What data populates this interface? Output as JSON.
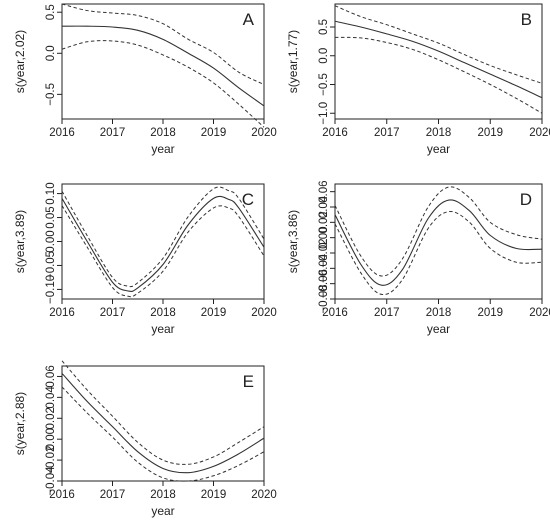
{
  "colors": {
    "line": "#333333",
    "frame": "#222222",
    "background": "#ffffff"
  },
  "chart_data": [
    {
      "type": "line",
      "panel_label": "A",
      "xlabel": "year",
      "ylabel": "s(year,2.02)",
      "xlim": [
        2016,
        2020
      ],
      "ylim": [
        -0.8,
        0.6
      ],
      "xticks": [
        2016,
        2017,
        2018,
        2019,
        2020
      ],
      "yticks": [
        -0.5,
        0.0,
        0.5
      ],
      "ytick_labels": [
        "−0.5",
        "0.0",
        "0.5"
      ],
      "grid": false,
      "x": [
        2016,
        2016.5,
        2017,
        2017.5,
        2018,
        2018.5,
        2019,
        2019.5,
        2020
      ],
      "series": [
        {
          "style": "solid",
          "values": [
            0.33,
            0.33,
            0.32,
            0.28,
            0.17,
            0.0,
            -0.18,
            -0.42,
            -0.64
          ]
        },
        {
          "style": "dashed",
          "values": [
            0.6,
            0.52,
            0.49,
            0.46,
            0.36,
            0.17,
            0.01,
            -0.23,
            -0.38
          ]
        },
        {
          "style": "dashed",
          "values": [
            0.05,
            0.14,
            0.15,
            0.1,
            -0.02,
            -0.17,
            -0.36,
            -0.62,
            -0.9
          ]
        }
      ]
    },
    {
      "type": "line",
      "panel_label": "B",
      "xlabel": "year",
      "ylabel": "s(year,1.77)",
      "xlim": [
        2016,
        2020
      ],
      "ylim": [
        -1.1,
        0.9
      ],
      "xticks": [
        2016,
        2017,
        2018,
        2019,
        2020
      ],
      "yticks": [
        -1.0,
        -0.5,
        0.0,
        0.5
      ],
      "ytick_labels": [
        "−1.0",
        "−0.5",
        "0.0",
        "0.5"
      ],
      "grid": false,
      "x": [
        2016,
        2016.5,
        2017,
        2017.5,
        2018,
        2018.5,
        2019,
        2019.5,
        2020
      ],
      "series": [
        {
          "style": "solid",
          "values": [
            0.6,
            0.5,
            0.38,
            0.25,
            0.08,
            -0.12,
            -0.32,
            -0.52,
            -0.73
          ]
        },
        {
          "style": "dashed",
          "values": [
            0.87,
            0.68,
            0.54,
            0.38,
            0.22,
            0.02,
            -0.17,
            -0.33,
            -0.48
          ]
        },
        {
          "style": "dashed",
          "values": [
            0.32,
            0.31,
            0.23,
            0.11,
            -0.07,
            -0.28,
            -0.5,
            -0.74,
            -1.0
          ]
        }
      ]
    },
    {
      "type": "line",
      "panel_label": "C",
      "xlabel": "year",
      "ylabel": "s(year,3.89)",
      "xlim": [
        2016,
        2020
      ],
      "ylim": [
        -0.12,
        0.12
      ],
      "xticks": [
        2016,
        2017,
        2018,
        2019,
        2020
      ],
      "yticks": [
        -0.1,
        -0.05,
        0.0,
        0.05,
        0.1
      ],
      "ytick_labels": [
        "−0.10",
        "−0.05",
        "0.00",
        "0.05",
        "0.10"
      ],
      "grid": false,
      "x": [
        2016,
        2016.5,
        2017,
        2017.3,
        2017.5,
        2018,
        2018.5,
        2019,
        2019.3,
        2019.5,
        2020
      ],
      "series": [
        {
          "style": "solid",
          "values": [
            0.09,
            0.0,
            -0.085,
            -0.103,
            -0.097,
            -0.048,
            0.035,
            0.09,
            0.088,
            0.07,
            -0.012
          ]
        },
        {
          "style": "dashed",
          "values": [
            0.105,
            0.012,
            -0.075,
            -0.093,
            -0.086,
            -0.035,
            0.052,
            0.11,
            0.106,
            0.09,
            0.005
          ]
        },
        {
          "style": "dashed",
          "values": [
            0.075,
            -0.012,
            -0.096,
            -0.114,
            -0.108,
            -0.062,
            0.02,
            0.07,
            0.07,
            0.052,
            -0.03
          ]
        }
      ]
    },
    {
      "type": "line",
      "panel_label": "D",
      "xlabel": "year",
      "ylabel": "s(year,3.86)",
      "xlim": [
        2016,
        2020
      ],
      "ylim": [
        -0.08,
        0.07
      ],
      "xticks": [
        2016,
        2017,
        2018,
        2019,
        2020
      ],
      "yticks": [
        -0.08,
        -0.06,
        -0.04,
        -0.02,
        0.0,
        0.02,
        0.04,
        0.06
      ],
      "ytick_labels": [
        "−0.08",
        "−0.06",
        "−0.04",
        "−0.02",
        "0.00",
        "0.02",
        "0.04",
        "0.06"
      ],
      "grid": false,
      "x": [
        2016,
        2016.5,
        2016.9,
        2017.3,
        2017.8,
        2018.2,
        2018.6,
        2019,
        2019.5,
        2020
      ],
      "series": [
        {
          "style": "solid",
          "values": [
            0.03,
            -0.035,
            -0.062,
            -0.042,
            0.025,
            0.049,
            0.035,
            0.003,
            -0.014,
            -0.015
          ]
        },
        {
          "style": "dashed",
          "values": [
            0.042,
            -0.024,
            -0.05,
            -0.028,
            0.04,
            0.066,
            0.052,
            0.02,
            0.004,
            -0.002
          ]
        },
        {
          "style": "dashed",
          "values": [
            0.018,
            -0.046,
            -0.074,
            -0.055,
            0.012,
            0.034,
            0.02,
            -0.014,
            -0.032,
            -0.032
          ]
        }
      ]
    },
    {
      "type": "line",
      "panel_label": "E",
      "xlabel": "year",
      "ylabel": "s(year,2.88)",
      "xlim": [
        2016,
        2020
      ],
      "ylim": [
        -0.04,
        0.07
      ],
      "xticks": [
        2016,
        2017,
        2018,
        2019,
        2020
      ],
      "yticks": [
        -0.04,
        -0.02,
        0.0,
        0.02,
        0.04,
        0.06
      ],
      "ytick_labels": [
        "−0.04",
        "−0.02",
        "0.00",
        "0.02",
        "0.04",
        "0.06"
      ],
      "grid": false,
      "x": [
        2016,
        2016.5,
        2017,
        2017.5,
        2018,
        2018.5,
        2019,
        2019.5,
        2020
      ],
      "series": [
        {
          "style": "solid",
          "values": [
            0.063,
            0.036,
            0.012,
            -0.012,
            -0.028,
            -0.032,
            -0.026,
            -0.014,
            0.001
          ]
        },
        {
          "style": "dashed",
          "values": [
            0.075,
            0.047,
            0.022,
            -0.003,
            -0.02,
            -0.024,
            -0.017,
            -0.003,
            0.012
          ]
        },
        {
          "style": "dashed",
          "values": [
            0.05,
            0.025,
            0.002,
            -0.022,
            -0.037,
            -0.04,
            -0.035,
            -0.025,
            -0.012
          ]
        }
      ]
    }
  ]
}
